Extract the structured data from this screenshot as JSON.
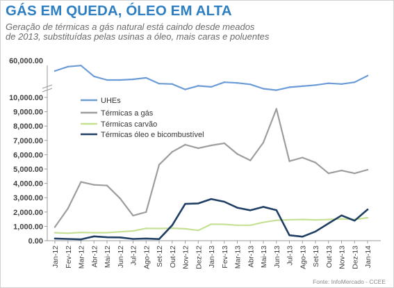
{
  "title": "GÁS EM QUEDA, ÓLEO EM ALTA",
  "subtitle_lines": [
    "Geração de térmicas a gás natural está caindo desde meados",
    "de 2013, substituídas pelas usinas a óleo, mais caras e poluentes"
  ],
  "source": "Fonte: InfoMercado - CCEE",
  "colors": {
    "title": "#2d7fc2",
    "uhes": "#6b9bd6",
    "gas": "#9d9d9d",
    "carvao": "#c6e095",
    "oleo": "#1f3e64"
  },
  "chart_data": {
    "type": "line",
    "x": [
      "Jan-12",
      "Fev-12",
      "Mar-12",
      "Abr-12",
      "Mai-12",
      "Jun-12",
      "Jul-12",
      "Ago-12",
      "Set-12",
      "Out-12",
      "Nov-12",
      "Dez-12",
      "Jan-13",
      "Fev-13",
      "Mar-13",
      "Abr-13",
      "Mai-13",
      "Jun-13",
      "Jul-13",
      "Ago-13",
      "Set-13",
      "Out-13",
      "Nov-13",
      "Dez-13",
      "Jan-14"
    ],
    "x_tick_labels": [
      "Jan-12",
      "Fev-12",
      "Mar-12",
      "Abr-12",
      "Mai-12",
      "Jun-12",
      "Jul-12",
      "Ago-12",
      "Set-12",
      "Out-12",
      "Nov-12",
      "Dez-12",
      "Jan-13",
      "Fev-13",
      "Mar-13",
      "Abr-13",
      "Mai-13",
      "Jun-13",
      "Jul-13",
      "Ago-13",
      "Set-13",
      "Out-13",
      "Nov-13",
      "Dez-13",
      "Jan-14"
    ],
    "y_tick_labels": [
      "0.00",
      "1,000.00",
      "2,000.00",
      "3,000.00",
      "4,000.00",
      "5,000.00",
      "6,000.00",
      "7,000.00",
      "8,000.00",
      "9,000.00",
      "10,000.00"
    ],
    "y_top_tick_label": "60,000.00",
    "ylim": [
      0,
      10000
    ],
    "ylim_upper_segment": [
      10000,
      60000
    ],
    "axis_break": true,
    "grid": false,
    "legend_position": "top-left",
    "series": [
      {
        "name": "UHEs",
        "color": "#6b9bd6",
        "values": [
          46500,
          52500,
          54000,
          39000,
          34000,
          34000,
          35000,
          37000,
          29000,
          28500,
          21000,
          26000,
          24500,
          31000,
          30000,
          28000,
          22000,
          20000,
          24000,
          25500,
          27000,
          29500,
          28500,
          31000,
          40000
        ]
      },
      {
        "name": "Térmicas a gás",
        "color": "#9d9d9d",
        "values": [
          950,
          2250,
          4100,
          3900,
          3850,
          2950,
          1750,
          2000,
          5300,
          6200,
          6700,
          6450,
          6650,
          6800,
          6050,
          5600,
          6850,
          9200,
          5550,
          5800,
          5450,
          4700,
          4900,
          4700,
          4950
        ]
      },
      {
        "name": "Térmicas carvão",
        "color": "#c6e095",
        "values": [
          560,
          520,
          580,
          560,
          560,
          620,
          680,
          860,
          850,
          870,
          830,
          720,
          1150,
          1140,
          1080,
          1080,
          1280,
          1420,
          1460,
          1480,
          1450,
          1480,
          1520,
          1480,
          1600
        ]
      },
      {
        "name": "Térmicas óleo e bicombustível",
        "color": "#1f3e64",
        "values": [
          150,
          120,
          90,
          300,
          240,
          230,
          120,
          150,
          110,
          1080,
          2570,
          2600,
          2910,
          2720,
          2300,
          2120,
          2360,
          2130,
          380,
          280,
          640,
          1210,
          1760,
          1400,
          2180
        ]
      }
    ]
  }
}
